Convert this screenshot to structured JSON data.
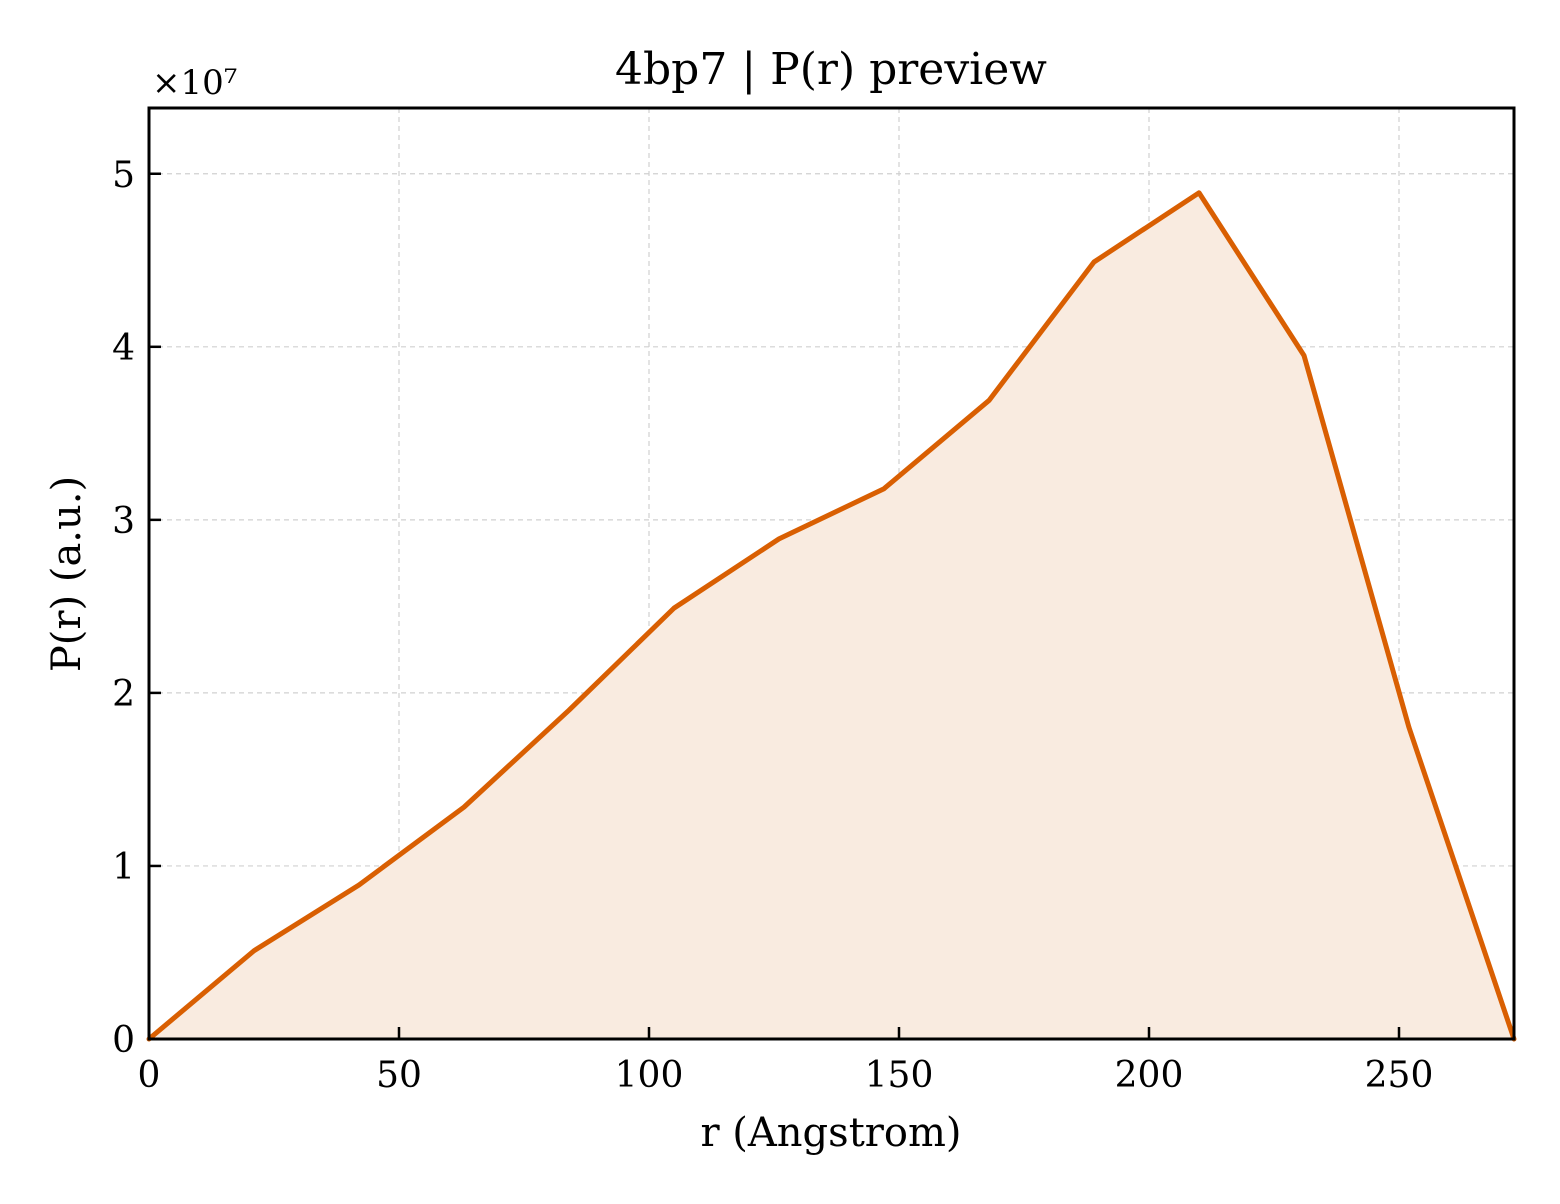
{
  "chart_data": {
    "type": "area",
    "title": "4bp7 | P(r) preview",
    "xlabel": "r (Angstrom)",
    "ylabel": "P(r) (a.u.)",
    "y_offset_label": "×10⁷",
    "y_scale_factor": 10000000,
    "xlim": [
      0,
      273
    ],
    "ylim": [
      0,
      53800000
    ],
    "x_ticks": [
      0,
      50,
      100,
      150,
      200,
      250
    ],
    "x_tick_labels": [
      "0",
      "50",
      "100",
      "150",
      "200",
      "250"
    ],
    "y_ticks": [
      0,
      10000000,
      20000000,
      30000000,
      40000000,
      50000000
    ],
    "y_tick_labels": [
      "0",
      "1",
      "2",
      "3",
      "4",
      "5"
    ],
    "grid": true,
    "series": [
      {
        "x": [
          0,
          21,
          42,
          63,
          84,
          105,
          126,
          147,
          168,
          189,
          210,
          231,
          252,
          273
        ],
        "values": [
          0,
          5100000,
          8900000,
          13400000,
          19000000,
          24900000,
          28900000,
          31800000,
          36900000,
          44900000,
          48900000,
          39500000,
          18000000,
          0
        ]
      }
    ],
    "colors": {
      "line": "#d95f02",
      "fill": "#f9ebe0",
      "grid": "#d0d0d0",
      "axes": "#000000"
    }
  }
}
